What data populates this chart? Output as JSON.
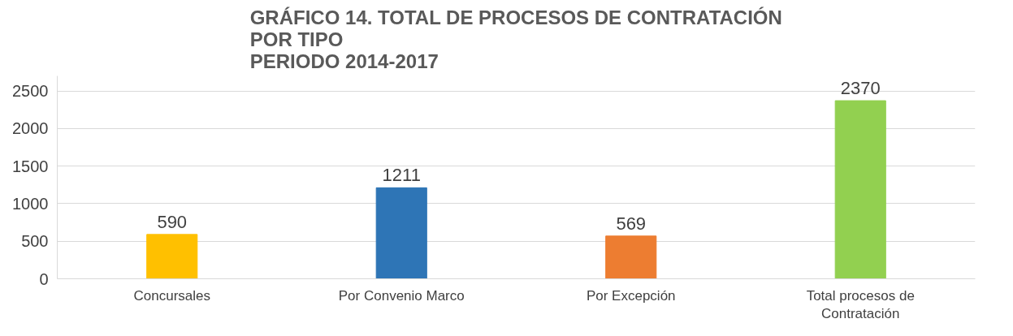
{
  "chart_data": {
    "type": "bar",
    "title": "GRÁFICO 14. TOTAL DE PROCESOS DE CONTRATACIÓN\nPOR TIPO\nPERIODO 2014-2017",
    "categories": [
      "Concursales",
      "Por Convenio Marco",
      "Por Excepción",
      "Total procesos de Contratación"
    ],
    "values": [
      590,
      1211,
      569,
      2370
    ],
    "colors": [
      "#ffc000",
      "#2e75b6",
      "#ed7d31",
      "#92d050"
    ],
    "ylim": [
      0,
      2700
    ],
    "yticks": [
      0,
      500,
      1000,
      1500,
      2000,
      2500
    ],
    "grid": "y",
    "data_labels": true
  }
}
